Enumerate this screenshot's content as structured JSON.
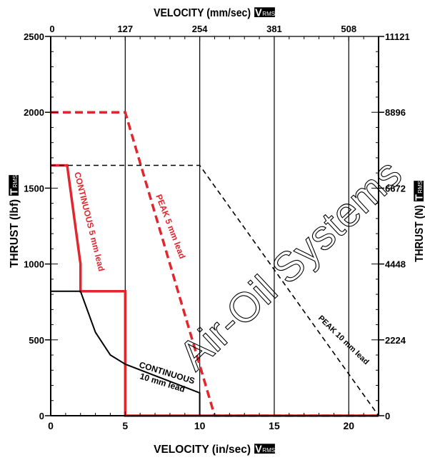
{
  "chart_data": {
    "type": "line",
    "x_axis": {
      "label": "VELOCITY (in/sec)",
      "badge_main": "V",
      "badge_sub": "RMS",
      "range": [
        0,
        22
      ],
      "ticks": [
        0,
        5,
        10,
        15,
        20
      ],
      "tick_labels": [
        "0",
        "5",
        "10",
        "15",
        "20"
      ]
    },
    "x_axis_top": {
      "label": "VELOCITY (mm/sec)",
      "badge_main": "V",
      "badge_sub": "RMS",
      "ticks": [
        0,
        5,
        10,
        15,
        20
      ],
      "tick_labels": [
        "0",
        "127",
        "254",
        "381",
        "508"
      ]
    },
    "y_axis": {
      "label": "THRUST (lbf)",
      "badge_main": "T",
      "badge_sub": "RMS",
      "range": [
        0,
        2500
      ],
      "ticks": [
        0,
        500,
        1000,
        1500,
        2000,
        2500
      ],
      "tick_labels": [
        "0",
        "500",
        "1000",
        "1500",
        "2000",
        "2500"
      ]
    },
    "y_axis_right": {
      "label": "THRUST (N)",
      "badge_main": "T",
      "badge_sub": "RMS",
      "ticks": [
        0,
        500,
        1000,
        1500,
        2000,
        2500
      ],
      "tick_labels": [
        "0",
        "2224",
        "4448",
        "6672",
        "8896",
        "11121"
      ]
    },
    "grid": "vertical at 5, 10, 15, 20; horizontal short ticks",
    "series": [
      {
        "name": "CONTINUOUS 5 mm lead",
        "color": "#e3262e",
        "dashed": false,
        "points": [
          [
            0,
            1650
          ],
          [
            1.1,
            1650
          ],
          [
            2.0,
            1000
          ],
          [
            2.0,
            820
          ],
          [
            5,
            820
          ],
          [
            5,
            0
          ],
          [
            22,
            0
          ]
        ]
      },
      {
        "name": "PEAK 5 mm lead",
        "color": "#e3262e",
        "dashed": true,
        "points": [
          [
            0,
            2000
          ],
          [
            5,
            2000
          ],
          [
            11,
            0
          ],
          [
            22,
            0
          ]
        ]
      },
      {
        "name": "CONTINUOUS 10 mm lead",
        "color": "#000000",
        "dashed": false,
        "points": [
          [
            0,
            820
          ],
          [
            2,
            820
          ],
          [
            3,
            550
          ],
          [
            4,
            400
          ],
          [
            5,
            340
          ],
          [
            10,
            150
          ],
          [
            10,
            0
          ]
        ]
      },
      {
        "name": "PEAK 10 mm lead",
        "color": "#000000",
        "dashed": true,
        "points": [
          [
            0,
            1650
          ],
          [
            10,
            1650
          ],
          [
            22,
            0
          ]
        ]
      }
    ],
    "annotations": [
      {
        "text": "CONTINUOUS 5 mm lead",
        "color": "#e3262e"
      },
      {
        "text": "PEAK 5 mm lead",
        "color": "#e3262e"
      },
      {
        "text": "CONTINUOUS",
        "color": "#000000"
      },
      {
        "text": "10 mm lead",
        "color": "#000000"
      },
      {
        "text": "PEAK 10 mm lead",
        "color": "#000000"
      }
    ],
    "watermark": "Air-Oil Systems"
  }
}
